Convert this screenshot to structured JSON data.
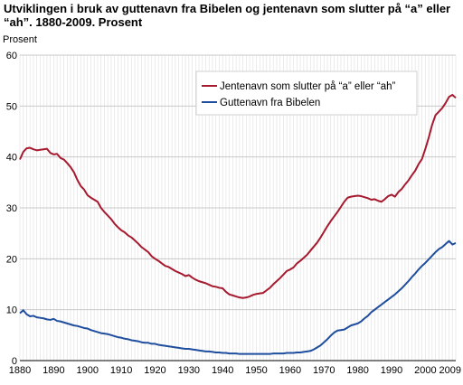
{
  "chart_data": {
    "type": "line",
    "title": "Utviklingen i bruk av guttenavn fra Bibelen og jentenavn som slutter på “a” eller “ah”. 1880-2009. Prosent",
    "ylabel": "Prosent",
    "xlabel": "",
    "xlim": [
      1880,
      2009
    ],
    "ylim": [
      0,
      60
    ],
    "x_ticks": [
      1880,
      1890,
      1900,
      1910,
      1920,
      1930,
      1940,
      1950,
      1960,
      1970,
      1980,
      1990,
      2000,
      2009
    ],
    "y_ticks": [
      0,
      10,
      20,
      30,
      40,
      50,
      60
    ],
    "grid": "vertical lines every year, horizontal lines at y ticks",
    "legend_position": "top-right",
    "series": [
      {
        "name": "Jentenavn som slutter på “a” eller “ah”",
        "color": "#a6192e",
        "points": [
          [
            1880,
            39.5
          ],
          [
            1881,
            41.0
          ],
          [
            1882,
            41.7
          ],
          [
            1883,
            41.8
          ],
          [
            1884,
            41.5
          ],
          [
            1885,
            41.3
          ],
          [
            1886,
            41.4
          ],
          [
            1887,
            41.5
          ],
          [
            1888,
            41.6
          ],
          [
            1889,
            40.8
          ],
          [
            1890,
            40.5
          ],
          [
            1891,
            40.6
          ],
          [
            1892,
            39.8
          ],
          [
            1893,
            39.5
          ],
          [
            1894,
            38.8
          ],
          [
            1895,
            38.0
          ],
          [
            1896,
            37.0
          ],
          [
            1897,
            35.5
          ],
          [
            1898,
            34.3
          ],
          [
            1899,
            33.6
          ],
          [
            1900,
            32.5
          ],
          [
            1901,
            32.0
          ],
          [
            1902,
            31.6
          ],
          [
            1903,
            31.2
          ],
          [
            1904,
            30.0
          ],
          [
            1905,
            29.2
          ],
          [
            1906,
            28.5
          ],
          [
            1907,
            27.8
          ],
          [
            1908,
            26.9
          ],
          [
            1909,
            26.2
          ],
          [
            1910,
            25.6
          ],
          [
            1911,
            25.2
          ],
          [
            1912,
            24.6
          ],
          [
            1913,
            24.2
          ],
          [
            1914,
            23.6
          ],
          [
            1915,
            23.0
          ],
          [
            1916,
            22.3
          ],
          [
            1917,
            21.8
          ],
          [
            1918,
            21.3
          ],
          [
            1919,
            20.5
          ],
          [
            1920,
            20.0
          ],
          [
            1921,
            19.6
          ],
          [
            1922,
            19.1
          ],
          [
            1923,
            18.6
          ],
          [
            1924,
            18.4
          ],
          [
            1925,
            18.0
          ],
          [
            1926,
            17.6
          ],
          [
            1927,
            17.3
          ],
          [
            1928,
            17.0
          ],
          [
            1929,
            16.6
          ],
          [
            1930,
            16.8
          ],
          [
            1931,
            16.3
          ],
          [
            1932,
            15.9
          ],
          [
            1933,
            15.6
          ],
          [
            1934,
            15.4
          ],
          [
            1935,
            15.2
          ],
          [
            1936,
            14.9
          ],
          [
            1937,
            14.6
          ],
          [
            1938,
            14.5
          ],
          [
            1939,
            14.3
          ],
          [
            1940,
            14.2
          ],
          [
            1941,
            13.5
          ],
          [
            1942,
            13.0
          ],
          [
            1943,
            12.8
          ],
          [
            1944,
            12.6
          ],
          [
            1945,
            12.4
          ],
          [
            1946,
            12.3
          ],
          [
            1947,
            12.4
          ],
          [
            1948,
            12.6
          ],
          [
            1949,
            12.9
          ],
          [
            1950,
            13.1
          ],
          [
            1951,
            13.2
          ],
          [
            1952,
            13.3
          ],
          [
            1953,
            13.8
          ],
          [
            1954,
            14.3
          ],
          [
            1955,
            15.0
          ],
          [
            1956,
            15.6
          ],
          [
            1957,
            16.2
          ],
          [
            1958,
            16.9
          ],
          [
            1959,
            17.6
          ],
          [
            1960,
            17.9
          ],
          [
            1961,
            18.3
          ],
          [
            1962,
            19.1
          ],
          [
            1963,
            19.6
          ],
          [
            1964,
            20.2
          ],
          [
            1965,
            20.8
          ],
          [
            1966,
            21.6
          ],
          [
            1967,
            22.4
          ],
          [
            1968,
            23.2
          ],
          [
            1969,
            24.2
          ],
          [
            1970,
            25.3
          ],
          [
            1971,
            26.4
          ],
          [
            1972,
            27.4
          ],
          [
            1973,
            28.3
          ],
          [
            1974,
            29.2
          ],
          [
            1975,
            30.2
          ],
          [
            1976,
            31.2
          ],
          [
            1977,
            32.0
          ],
          [
            1978,
            32.2
          ],
          [
            1979,
            32.3
          ],
          [
            1980,
            32.4
          ],
          [
            1981,
            32.3
          ],
          [
            1982,
            32.1
          ],
          [
            1983,
            31.9
          ],
          [
            1984,
            31.6
          ],
          [
            1985,
            31.7
          ],
          [
            1986,
            31.4
          ],
          [
            1987,
            31.2
          ],
          [
            1988,
            31.7
          ],
          [
            1989,
            32.3
          ],
          [
            1990,
            32.6
          ],
          [
            1991,
            32.2
          ],
          [
            1992,
            33.1
          ],
          [
            1993,
            33.7
          ],
          [
            1994,
            34.6
          ],
          [
            1995,
            35.4
          ],
          [
            1996,
            36.4
          ],
          [
            1997,
            37.3
          ],
          [
            1998,
            38.6
          ],
          [
            1999,
            39.6
          ],
          [
            2000,
            41.6
          ],
          [
            2001,
            43.8
          ],
          [
            2002,
            46.3
          ],
          [
            2003,
            48.2
          ],
          [
            2004,
            48.9
          ],
          [
            2005,
            49.6
          ],
          [
            2006,
            50.6
          ],
          [
            2007,
            51.8
          ],
          [
            2008,
            52.2
          ],
          [
            2009,
            51.6
          ]
        ]
      },
      {
        "name": "Guttenavn fra Bibelen",
        "color": "#1f4e9e",
        "points": [
          [
            1880,
            9.3
          ],
          [
            1881,
            9.9
          ],
          [
            1882,
            9.1
          ],
          [
            1883,
            8.7
          ],
          [
            1884,
            8.8
          ],
          [
            1885,
            8.5
          ],
          [
            1886,
            8.4
          ],
          [
            1887,
            8.3
          ],
          [
            1888,
            8.1
          ],
          [
            1889,
            8.0
          ],
          [
            1890,
            8.2
          ],
          [
            1891,
            7.8
          ],
          [
            1892,
            7.7
          ],
          [
            1893,
            7.5
          ],
          [
            1894,
            7.3
          ],
          [
            1895,
            7.1
          ],
          [
            1896,
            6.9
          ],
          [
            1897,
            6.8
          ],
          [
            1898,
            6.6
          ],
          [
            1899,
            6.4
          ],
          [
            1900,
            6.3
          ],
          [
            1901,
            6.0
          ],
          [
            1902,
            5.8
          ],
          [
            1903,
            5.6
          ],
          [
            1904,
            5.4
          ],
          [
            1905,
            5.3
          ],
          [
            1906,
            5.2
          ],
          [
            1907,
            5.0
          ],
          [
            1908,
            4.8
          ],
          [
            1909,
            4.6
          ],
          [
            1910,
            4.5
          ],
          [
            1911,
            4.3
          ],
          [
            1912,
            4.2
          ],
          [
            1913,
            4.0
          ],
          [
            1914,
            3.9
          ],
          [
            1915,
            3.8
          ],
          [
            1916,
            3.6
          ],
          [
            1917,
            3.5
          ],
          [
            1918,
            3.5
          ],
          [
            1919,
            3.3
          ],
          [
            1920,
            3.3
          ],
          [
            1921,
            3.1
          ],
          [
            1922,
            3.0
          ],
          [
            1923,
            2.9
          ],
          [
            1924,
            2.8
          ],
          [
            1925,
            2.7
          ],
          [
            1926,
            2.6
          ],
          [
            1927,
            2.5
          ],
          [
            1928,
            2.4
          ],
          [
            1929,
            2.3
          ],
          [
            1930,
            2.3
          ],
          [
            1931,
            2.2
          ],
          [
            1932,
            2.1
          ],
          [
            1933,
            2.0
          ],
          [
            1934,
            1.9
          ],
          [
            1935,
            1.8
          ],
          [
            1936,
            1.8
          ],
          [
            1937,
            1.7
          ],
          [
            1938,
            1.6
          ],
          [
            1939,
            1.6
          ],
          [
            1940,
            1.5
          ],
          [
            1941,
            1.5
          ],
          [
            1942,
            1.4
          ],
          [
            1943,
            1.4
          ],
          [
            1944,
            1.4
          ],
          [
            1945,
            1.3
          ],
          [
            1946,
            1.3
          ],
          [
            1947,
            1.3
          ],
          [
            1948,
            1.3
          ],
          [
            1949,
            1.3
          ],
          [
            1950,
            1.3
          ],
          [
            1951,
            1.3
          ],
          [
            1952,
            1.3
          ],
          [
            1953,
            1.3
          ],
          [
            1954,
            1.3
          ],
          [
            1955,
            1.4
          ],
          [
            1956,
            1.4
          ],
          [
            1957,
            1.4
          ],
          [
            1958,
            1.4
          ],
          [
            1959,
            1.5
          ],
          [
            1960,
            1.5
          ],
          [
            1961,
            1.5
          ],
          [
            1962,
            1.6
          ],
          [
            1963,
            1.6
          ],
          [
            1964,
            1.7
          ],
          [
            1965,
            1.8
          ],
          [
            1966,
            1.9
          ],
          [
            1967,
            2.2
          ],
          [
            1968,
            2.6
          ],
          [
            1969,
            3.0
          ],
          [
            1970,
            3.6
          ],
          [
            1971,
            4.2
          ],
          [
            1972,
            4.9
          ],
          [
            1973,
            5.5
          ],
          [
            1974,
            5.9
          ],
          [
            1975,
            6.0
          ],
          [
            1976,
            6.1
          ],
          [
            1977,
            6.5
          ],
          [
            1978,
            6.9
          ],
          [
            1979,
            7.1
          ],
          [
            1980,
            7.3
          ],
          [
            1981,
            7.7
          ],
          [
            1982,
            8.3
          ],
          [
            1983,
            8.8
          ],
          [
            1984,
            9.5
          ],
          [
            1985,
            10.0
          ],
          [
            1986,
            10.5
          ],
          [
            1987,
            11.0
          ],
          [
            1988,
            11.5
          ],
          [
            1989,
            12.0
          ],
          [
            1990,
            12.5
          ],
          [
            1991,
            13.0
          ],
          [
            1992,
            13.6
          ],
          [
            1993,
            14.2
          ],
          [
            1994,
            14.9
          ],
          [
            1995,
            15.6
          ],
          [
            1996,
            16.4
          ],
          [
            1997,
            17.1
          ],
          [
            1998,
            17.9
          ],
          [
            1999,
            18.6
          ],
          [
            2000,
            19.2
          ],
          [
            2001,
            19.9
          ],
          [
            2002,
            20.6
          ],
          [
            2003,
            21.3
          ],
          [
            2004,
            21.9
          ],
          [
            2005,
            22.3
          ],
          [
            2006,
            22.9
          ],
          [
            2007,
            23.5
          ],
          [
            2008,
            22.8
          ],
          [
            2009,
            23.1
          ]
        ]
      }
    ]
  }
}
